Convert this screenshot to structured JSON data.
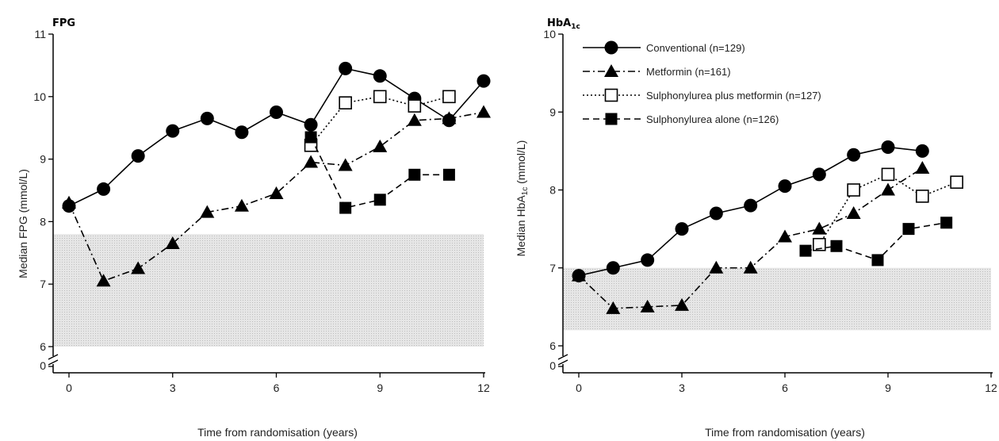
{
  "chart_data": [
    {
      "type": "line",
      "title": "FPG",
      "xlabel": "Time from randomisation (years)",
      "ylabel": "Median FPG (mmol/L)",
      "xlim": [
        0,
        12
      ],
      "ylim": [
        6,
        11
      ],
      "y_axis_break": true,
      "y_break_label": "0",
      "xticks": [
        "0",
        "3",
        "6",
        "9",
        "12"
      ],
      "yticks": [
        "6",
        "7",
        "8",
        "9",
        "10",
        "11"
      ],
      "shaded_band": [
        6,
        7.8
      ],
      "series": [
        {
          "name": "Conventional",
          "marker": "circle",
          "line": "solid",
          "x": [
            0,
            1,
            2,
            3,
            4,
            5,
            6,
            7,
            8,
            9,
            10,
            11,
            12
          ],
          "y": [
            8.25,
            8.52,
            9.05,
            9.45,
            9.65,
            9.43,
            9.75,
            9.55,
            10.45,
            10.33,
            9.97,
            9.62,
            10.25
          ]
        },
        {
          "name": "Metformin",
          "marker": "triangle",
          "line": "dashdot",
          "x": [
            0,
            1,
            2,
            3,
            4,
            5,
            6,
            7,
            8,
            9,
            10,
            11,
            12
          ],
          "y": [
            8.3,
            7.05,
            7.25,
            7.65,
            8.15,
            8.25,
            8.45,
            8.95,
            8.9,
            9.2,
            9.62,
            9.65,
            9.75
          ]
        },
        {
          "name": "Sulphonylurea plus metformin",
          "marker": "open-square",
          "line": "dotted",
          "x": [
            7,
            8,
            9,
            10,
            11
          ],
          "y": [
            9.22,
            9.9,
            10.0,
            9.85,
            10.0
          ]
        },
        {
          "name": "Sulphonylurea alone",
          "marker": "filled-square",
          "line": "dashed",
          "x": [
            7,
            8,
            9,
            10,
            11
          ],
          "y": [
            9.35,
            8.22,
            8.35,
            8.75,
            8.75
          ]
        }
      ]
    },
    {
      "type": "line",
      "title": "HbA",
      "title_subscript": "1c",
      "xlabel": "Time from randomisation (years)",
      "ylabel_prefix": "Median HbA",
      "ylabel_subscript": "1c",
      "ylabel_suffix": " (mmol/L)",
      "xlim": [
        0,
        12
      ],
      "ylim": [
        6,
        10
      ],
      "y_axis_break": true,
      "y_break_label": "0",
      "xticks": [
        "0",
        "3",
        "6",
        "9",
        "12"
      ],
      "yticks": [
        "6",
        "7",
        "8",
        "9",
        "10"
      ],
      "shaded_band": [
        6.2,
        7.0
      ],
      "legend_position": "top-left",
      "series": [
        {
          "name": "Conventional",
          "legend_label": "Conventional (n=129)",
          "marker": "circle",
          "line": "solid",
          "x": [
            0,
            1,
            2,
            3,
            4,
            5,
            6,
            7,
            8,
            9,
            10
          ],
          "y": [
            6.9,
            7.0,
            7.1,
            7.5,
            7.7,
            7.8,
            8.05,
            8.2,
            8.45,
            8.55,
            8.5
          ]
        },
        {
          "name": "Metformin",
          "legend_label": "Metformin (n=161)",
          "marker": "triangle",
          "line": "dashdot",
          "x": [
            0,
            1,
            2,
            3,
            4,
            5,
            6,
            7,
            8,
            9,
            10
          ],
          "y": [
            6.9,
            6.48,
            6.5,
            6.52,
            7.0,
            7.0,
            7.4,
            7.5,
            7.7,
            8.0,
            8.28
          ]
        },
        {
          "name": "Sulphonylurea plus metformin",
          "legend_label": "Sulphonylurea plus metformin (n=127)",
          "marker": "open-square",
          "line": "dotted",
          "x": [
            7,
            8,
            9,
            10,
            11
          ],
          "y": [
            7.3,
            8.0,
            8.2,
            7.92,
            8.1
          ]
        },
        {
          "name": "Sulphonylurea alone",
          "legend_label": "Sulphonylurea alone (n=126)",
          "marker": "filled-square",
          "line": "dashed",
          "x": [
            6.6,
            7.5,
            8.7,
            9.6,
            10.7
          ],
          "y": [
            7.22,
            7.28,
            7.1,
            7.5,
            7.58
          ]
        }
      ]
    }
  ]
}
